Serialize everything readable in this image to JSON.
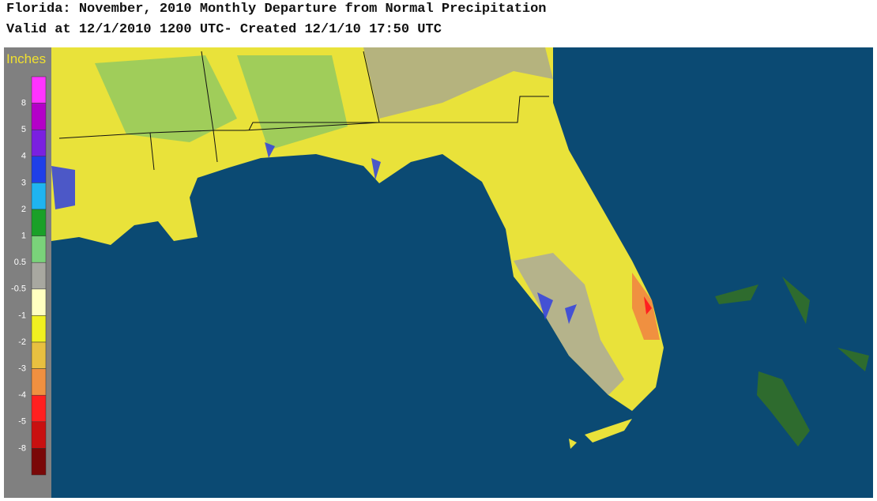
{
  "header": {
    "title": "Florida: November, 2010 Monthly Departure from Normal Precipitation",
    "subtitle": "Valid at 12/1/2010 1200 UTC- Created 12/1/10 17:50 UTC"
  },
  "legend": {
    "unit": "Inches",
    "labels": [
      "8",
      "5",
      "4",
      "3",
      "2",
      "1",
      "0.5",
      "-0.5",
      "-1",
      "-2",
      "-3",
      "-4",
      "-5",
      "-8"
    ],
    "colors": [
      "#ff33ff",
      "#b400c8",
      "#7a20e0",
      "#1f3fe8",
      "#1fb4f0",
      "#1aa028",
      "#7ad27a",
      "#a8a8a0",
      "#ffffc0",
      "#f0f020",
      "#e8c040",
      "#f09040",
      "#ff2020",
      "#c81010",
      "#7a0808"
    ]
  }
}
